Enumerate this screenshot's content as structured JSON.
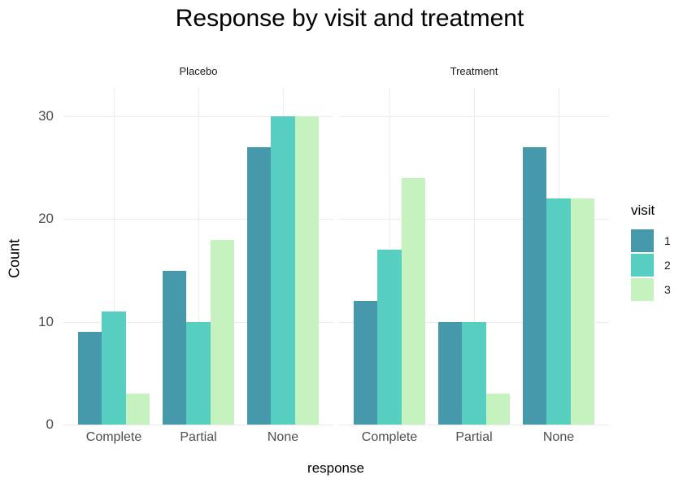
{
  "title": "Response by visit and treatment",
  "y_axis": {
    "title": "Count"
  },
  "x_axis": {
    "title": "response"
  },
  "legend": {
    "title": "visit",
    "items": [
      {
        "label": "1",
        "color": "#4699aa"
      },
      {
        "label": "2",
        "color": "#56cfc0"
      },
      {
        "label": "3",
        "color": "#c5f2be"
      }
    ],
    "position": "right"
  },
  "colors": {
    "grid": "#ebebeb",
    "axis_text": "#4d4d4d",
    "facet_text": "#1a1a1a",
    "background": "#ffffff"
  },
  "chart_data": {
    "type": "bar",
    "title": "Response by visit and treatment",
    "xlabel": "response",
    "ylabel": "Count",
    "ylim": [
      0,
      32.5
    ],
    "y_ticks": [
      0,
      10,
      20,
      30
    ],
    "grid": "major gridlines only, light gray on white",
    "legend_title": "visit",
    "legend_position": "right",
    "categories": [
      "Complete",
      "Partial",
      "None"
    ],
    "facets": [
      {
        "label": "Placebo",
        "series": [
          {
            "name": "1",
            "color": "#4699aa",
            "values": [
              9,
              15,
              27
            ]
          },
          {
            "name": "2",
            "color": "#56cfc0",
            "values": [
              11,
              10,
              30
            ]
          },
          {
            "name": "3",
            "color": "#c5f2be",
            "values": [
              3,
              18,
              30
            ]
          }
        ]
      },
      {
        "label": "Treatment",
        "series": [
          {
            "name": "1",
            "color": "#4699aa",
            "values": [
              12,
              10,
              27
            ]
          },
          {
            "name": "2",
            "color": "#56cfc0",
            "values": [
              17,
              10,
              22
            ]
          },
          {
            "name": "3",
            "color": "#c5f2be",
            "values": [
              24,
              3,
              22
            ]
          }
        ]
      }
    ]
  }
}
